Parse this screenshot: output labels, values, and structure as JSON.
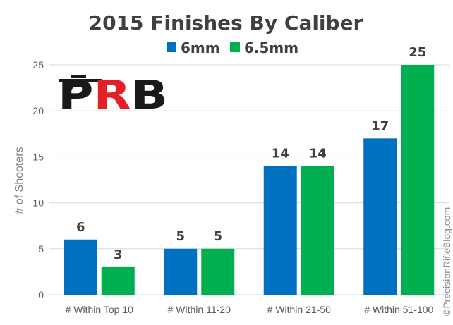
{
  "colors": {
    "series_6mm": "#0070c0",
    "series_65mm": "#00b050",
    "grid": "#d9d9d9",
    "logo_dark": "#1a1a1a",
    "logo_red": "#e32026"
  },
  "logo": {
    "text": "PRB",
    "icon": "rifle-icon"
  },
  "watermark": "©PrecisionRifleBlog.com",
  "chart_data": {
    "type": "bar",
    "title": "2015 Finishes By Caliber",
    "ylabel": "# of Shooters",
    "xlabel": "",
    "categories": [
      "# Within Top 10",
      "# Within 11-20",
      "# Within 21-50",
      "# Within 51-100"
    ],
    "series": [
      {
        "name": "6mm",
        "values": [
          6,
          5,
          14,
          17
        ]
      },
      {
        "name": "6.5mm",
        "values": [
          3,
          5,
          14,
          25
        ]
      }
    ],
    "ylim": [
      0,
      25
    ],
    "yticks": [
      0,
      5,
      10,
      15,
      20,
      25
    ],
    "grid": true,
    "legend_position": "top"
  }
}
